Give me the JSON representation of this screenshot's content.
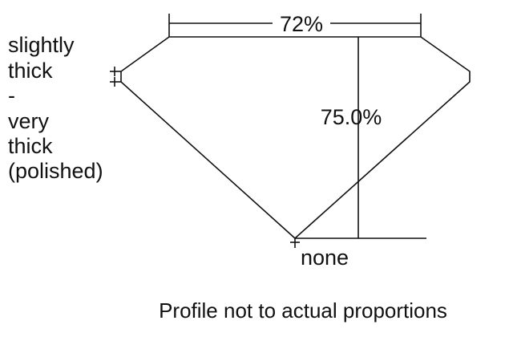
{
  "girdle_label": [
    "slightly",
    "thick",
    "-",
    "very",
    "thick",
    "(polished)"
  ],
  "table_percent": "72%",
  "depth_percent": "75.0%",
  "culet_label": "none",
  "caption": "Profile not to actual proportions",
  "colors": {
    "line": "#111111",
    "background": "#ffffff"
  }
}
